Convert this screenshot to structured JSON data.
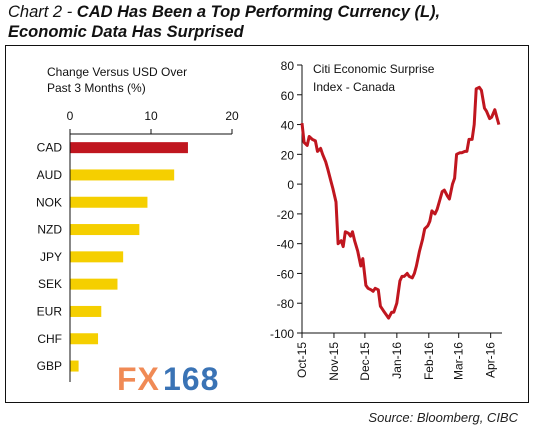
{
  "header": {
    "prefix": "Chart 2 -",
    "text_line1": " CAD Has Been a Top Performing Currency (L),",
    "text_line2": "Economic Data Has Surprised"
  },
  "source": "Source: Bloomberg, CIBC",
  "watermark": {
    "fx": "FX",
    "num": "168"
  },
  "colors": {
    "highlight_bar": "#c0161f",
    "bar": "#f5cf00",
    "line": "#c0161f",
    "watermark_fx": "#f08a55",
    "watermark_num": "#3a73b5"
  },
  "chart_data": [
    {
      "type": "bar",
      "orientation": "horizontal",
      "title": "Change Versus USD Over Past 3 Months (%)",
      "title_lines": [
        "Change Versus USD Over",
        "Past 3 Months (%)"
      ],
      "categories": [
        "CAD",
        "AUD",
        "NOK",
        "NZD",
        "JPY",
        "SEK",
        "EUR",
        "CHF",
        "GBP"
      ],
      "values": [
        14.5,
        12.8,
        9.5,
        8.5,
        6.5,
        5.8,
        3.8,
        3.4,
        1.0
      ],
      "xlim": [
        0,
        20
      ],
      "xticks": [
        "0",
        "10",
        "20"
      ],
      "grid": false
    },
    {
      "type": "line",
      "title": "Citi Economic Surprise Index - Canada",
      "title_lines": [
        "Citi Economic Surprise",
        "Index - Canada"
      ],
      "ylim": [
        -100,
        80
      ],
      "yticks": [
        "80",
        "60",
        "40",
        "20",
        "0",
        "-20",
        "-40",
        "-60",
        "-80",
        "-100"
      ],
      "xticks": [
        "Oct-15",
        "Nov-15",
        "Dec-15",
        "Jan-16",
        "Feb-16",
        "Mar-16",
        "Apr-16"
      ],
      "grid": false,
      "series": [
        {
          "x": [
            "2015-10-01",
            "2015-10-03",
            "2015-10-06",
            "2015-10-08",
            "2015-10-11",
            "2015-10-14",
            "2015-10-16",
            "2015-10-19",
            "2015-10-21",
            "2015-10-24",
            "2015-10-26",
            "2015-10-29",
            "2015-10-31",
            "2015-11-03",
            "2015-11-05",
            "2015-11-08",
            "2015-11-10",
            "2015-11-12",
            "2015-11-15",
            "2015-11-17",
            "2015-11-19",
            "2015-11-21",
            "2015-11-24",
            "2015-11-27",
            "2015-11-29",
            "2015-12-02",
            "2015-12-04",
            "2015-12-07",
            "2015-12-09",
            "2015-12-11",
            "2015-12-14",
            "2015-12-16",
            "2015-12-19",
            "2015-12-22",
            "2015-12-24",
            "2015-12-27",
            "2015-12-29",
            "2016-01-01",
            "2016-01-04",
            "2016-01-06",
            "2016-01-08",
            "2016-01-11",
            "2016-01-13",
            "2016-01-16",
            "2016-01-18",
            "2016-01-20",
            "2016-01-23",
            "2016-01-26",
            "2016-01-28",
            "2016-01-31",
            "2016-02-02",
            "2016-02-04",
            "2016-02-07",
            "2016-02-09",
            "2016-02-12",
            "2016-02-14",
            "2016-02-16",
            "2016-02-19",
            "2016-02-21",
            "2016-02-24",
            "2016-02-26",
            "2016-02-28",
            "2016-03-02",
            "2016-03-04",
            "2016-03-07",
            "2016-03-09",
            "2016-03-11",
            "2016-03-14",
            "2016-03-16",
            "2016-03-18",
            "2016-03-21",
            "2016-03-23",
            "2016-03-26",
            "2016-03-28",
            "2016-03-31",
            "2016-04-02",
            "2016-04-05",
            "2016-04-07",
            "2016-04-09"
          ],
          "y": [
            41,
            28,
            26,
            32,
            30,
            29,
            22,
            24,
            20,
            15,
            10,
            2,
            -3,
            -12,
            -40,
            -38,
            -42,
            -32,
            -33,
            -35,
            -32,
            -38,
            -45,
            -55,
            -50,
            -68,
            -70,
            -71,
            -72,
            -70,
            -71,
            -82,
            -85,
            -88,
            -90,
            -86,
            -86,
            -80,
            -65,
            -62,
            -62,
            -60,
            -62,
            -63,
            -60,
            -55,
            -45,
            -37,
            -30,
            -28,
            -25,
            -18,
            -20,
            -17,
            -10,
            -5,
            -4,
            -8,
            -10,
            0,
            4,
            20,
            21,
            21,
            22,
            22,
            30,
            30,
            40,
            64,
            65,
            63,
            51,
            49,
            44,
            45,
            50,
            45,
            40
          ]
        }
      ]
    }
  ]
}
